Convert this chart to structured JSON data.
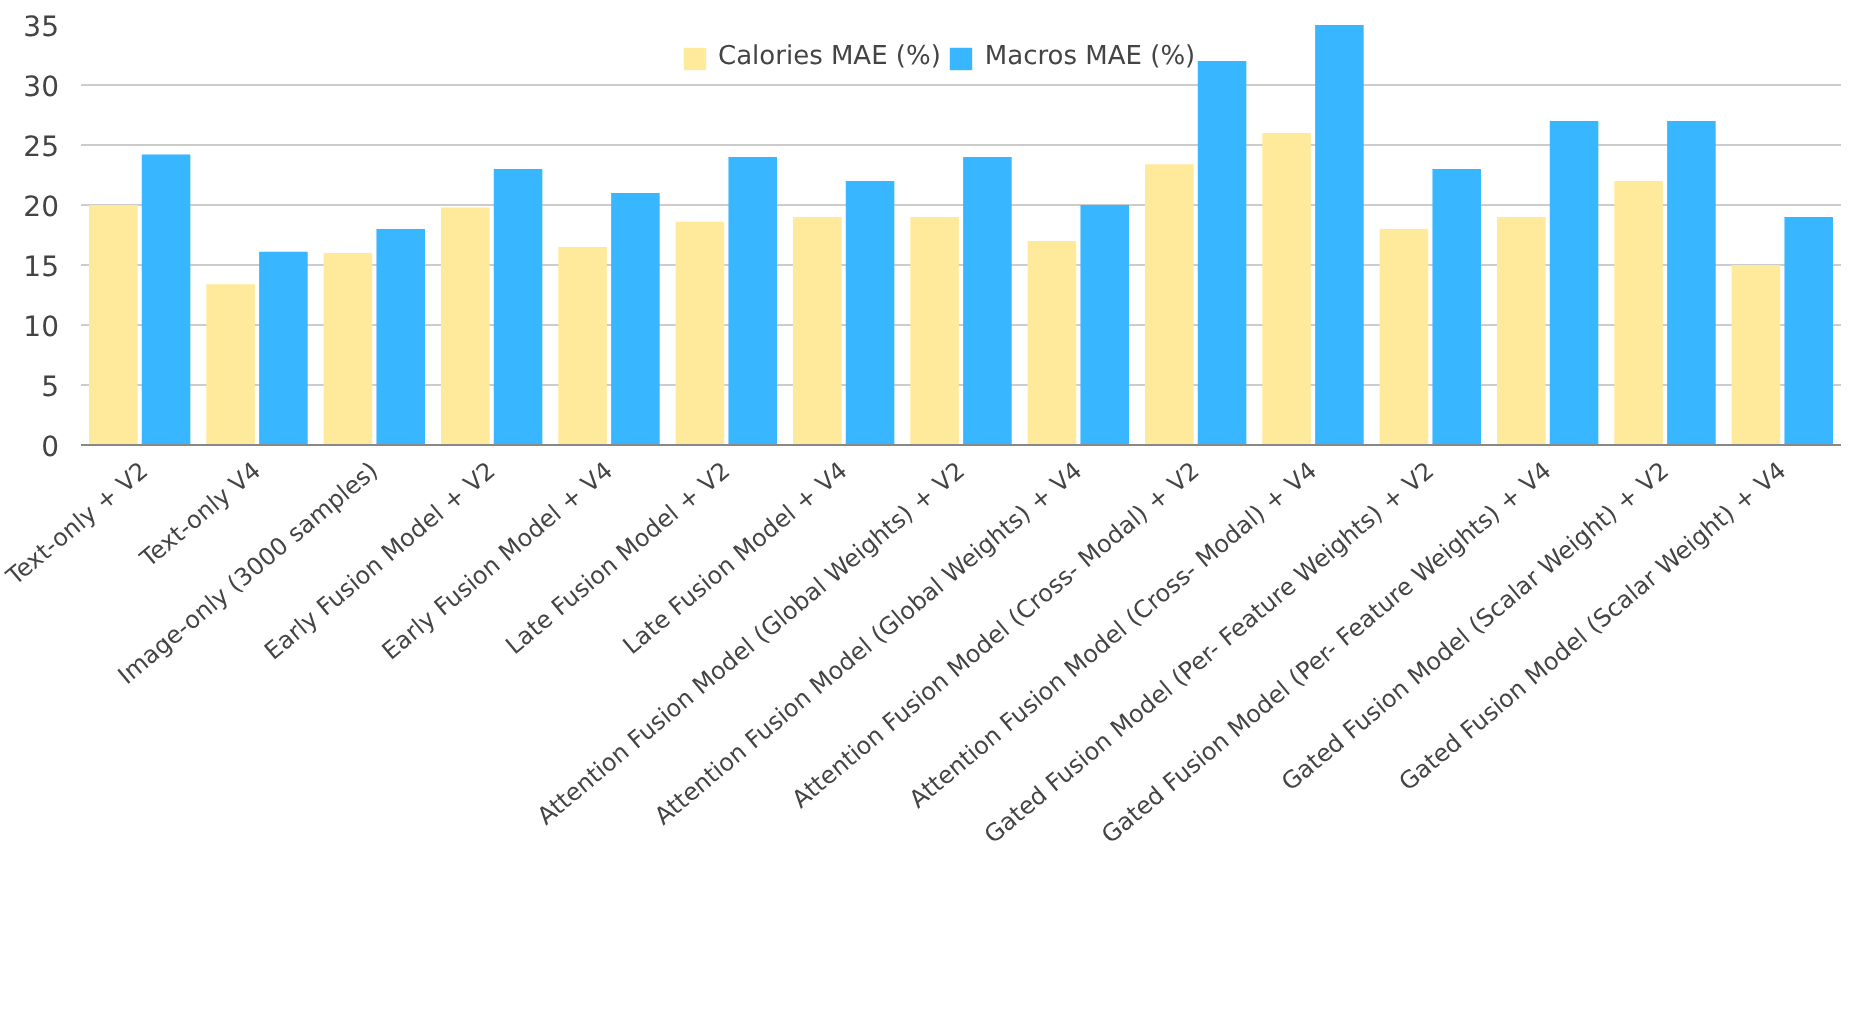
{
  "chart_data": {
    "type": "bar",
    "categories": [
      "Text-only + V2",
      "Text-only V4",
      "Image-only (3000 samples)",
      "Early Fusion Model + V2",
      "Early Fusion Model + V4",
      "Late Fusion Model + V2",
      "Late Fusion Model + V4",
      "Attention Fusion Model (Global Weights) + V2",
      "Attention Fusion Model (Global Weights) + V4",
      "Attention Fusion Model (Cross- Modal) + V2",
      "Attention Fusion Model (Cross- Modal) + V4",
      "Gated Fusion Model (Per- Feature Weights) + V2",
      "Gated Fusion Model (Per- Feature Weights) + V4",
      "Gated Fusion Model (Scalar Weight) + V2",
      "Gated Fusion Model (Scalar Weight) + V4"
    ],
    "series": [
      {
        "name": "Calories MAE (%)",
        "color": "#ffea9c",
        "values": [
          20,
          13.4,
          16,
          19.8,
          16.5,
          18.6,
          19,
          19,
          17,
          23.4,
          26,
          18,
          19,
          22,
          15
        ]
      },
      {
        "name": "Macros MAE (%)",
        "color": "#38b6ff",
        "values": [
          24.2,
          16.1,
          18,
          23,
          21,
          24,
          22,
          24,
          20,
          32,
          35,
          23,
          27,
          27,
          19
        ]
      }
    ],
    "ylim": [
      0,
      35
    ],
    "yticks": [
      0,
      5,
      10,
      15,
      20,
      25,
      30,
      35
    ],
    "grid": "y",
    "legend": "top"
  }
}
